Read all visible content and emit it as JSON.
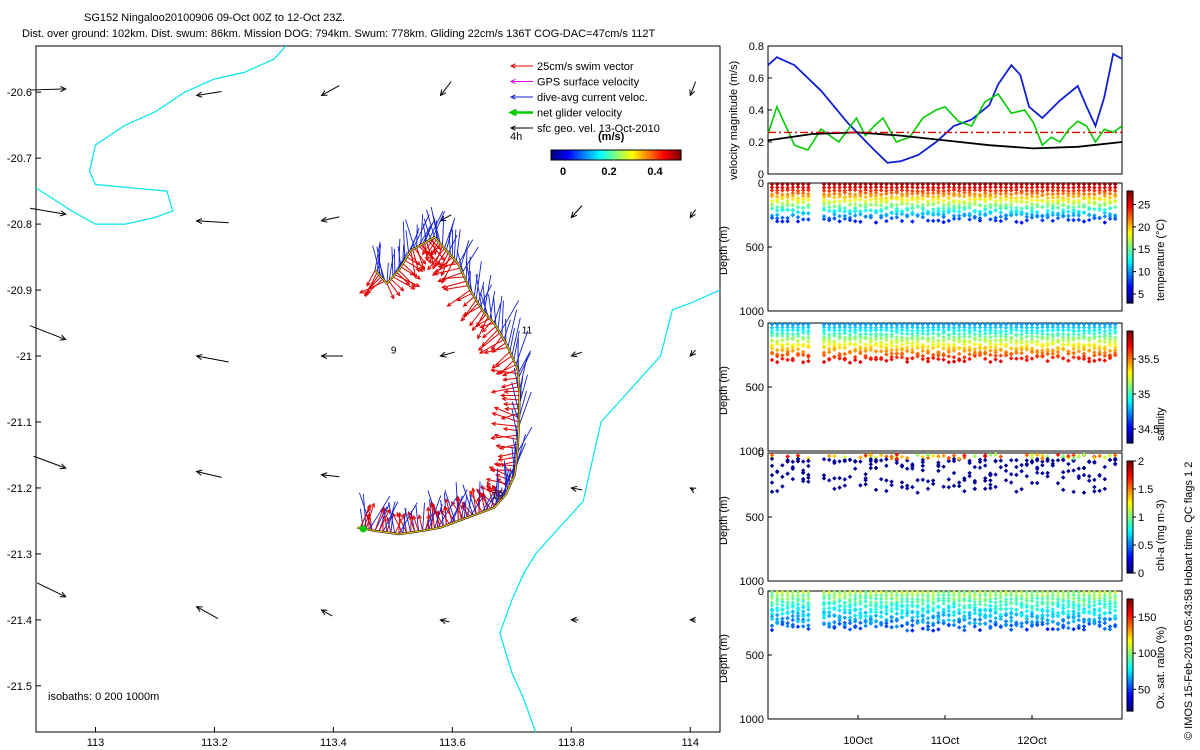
{
  "title_line1": "SG152 Ningaloo20100906 09-Oct 00Z to 12-Oct 23Z.",
  "title_line2": "Dist. over ground: 102km. Dist. swum: 86km. Mission DOG: 794km. Swum: 778km. Gliding 22cm/s 136T COG-DAC=47cm/s 112T",
  "footer": "© IMOS 15-Feb-2019 05:43:58 Hobart time. QC flags 1 2",
  "chart_data": [
    {
      "type": "scatter",
      "name": "track-map",
      "xlim": [
        112.9,
        114.05
      ],
      "ylim": [
        -21.57,
        -20.53
      ],
      "xticks": [
        "113",
        "113.2",
        "113.4",
        "113.6",
        "113.8",
        "114"
      ],
      "yticks": [
        "-20.6",
        "-20.7",
        "-20.8",
        "-20.9",
        "-21",
        "-21.1",
        "-21.2",
        "-21.3",
        "-21.4",
        "-21.5"
      ],
      "legend": {
        "items": [
          {
            "label": "25cm/s swim vector",
            "color": "#e00000"
          },
          {
            "label": "GPS surface velocity",
            "color": "#e000e0"
          },
          {
            "label": "dive-avg current veloc.",
            "color": "#1020d0"
          },
          {
            "label": "net glider velocity",
            "color": "#00cc00"
          },
          {
            "label": "sfc geo. vel. 13-Oct-2010",
            "color": "#000000"
          }
        ],
        "sub": "4h",
        "scale_label": "(m/s)",
        "scale_ticks": [
          "0",
          "0.2",
          "0.4"
        ],
        "placement": "top-right"
      },
      "isobaths_label": "isobaths: 0   200  1000m",
      "day_labels": [
        "9",
        "11",
        "12"
      ],
      "track": [
        [
          113.47,
          -20.87
        ],
        [
          113.49,
          -20.89
        ],
        [
          113.51,
          -20.87
        ],
        [
          113.53,
          -20.84
        ],
        [
          113.55,
          -20.83
        ],
        [
          113.57,
          -20.82
        ],
        [
          113.59,
          -20.84
        ],
        [
          113.61,
          -20.86
        ],
        [
          113.63,
          -20.9
        ],
        [
          113.65,
          -20.93
        ],
        [
          113.67,
          -20.95
        ],
        [
          113.69,
          -20.98
        ],
        [
          113.71,
          -21.02
        ],
        [
          113.713,
          -21.06
        ],
        [
          113.712,
          -21.1
        ],
        [
          113.71,
          -21.14
        ],
        [
          113.705,
          -21.18
        ],
        [
          113.69,
          -21.21
        ],
        [
          113.67,
          -21.23
        ],
        [
          113.64,
          -21.24
        ],
        [
          113.61,
          -21.25
        ],
        [
          113.58,
          -21.26
        ],
        [
          113.55,
          -21.265
        ],
        [
          113.51,
          -21.27
        ],
        [
          113.47,
          -21.265
        ],
        [
          113.44,
          -21.26
        ]
      ],
      "geo_vectors": [
        [
          112.95,
          -20.595,
          0.1,
          0.003
        ],
        [
          113.17,
          -20.605,
          -0.07,
          -0.01
        ],
        [
          113.38,
          -20.605,
          -0.05,
          -0.025
        ],
        [
          113.58,
          -20.605,
          -0.03,
          -0.035
        ],
        [
          114.0,
          -20.605,
          -0.015,
          -0.035
        ],
        [
          112.95,
          -20.785,
          0.1,
          -0.015
        ],
        [
          113.17,
          -20.795,
          -0.09,
          0.005
        ],
        [
          113.38,
          -20.795,
          -0.05,
          -0.01
        ],
        [
          113.58,
          -20.795,
          -0.03,
          -0.015
        ],
        [
          113.8,
          -20.79,
          -0.03,
          -0.03
        ],
        [
          114.0,
          -20.79,
          -0.015,
          -0.02
        ],
        [
          112.95,
          -20.975,
          0.1,
          -0.035
        ],
        [
          113.17,
          -21.0,
          -0.09,
          0.015
        ],
        [
          113.38,
          -21.0,
          -0.06,
          0.0
        ],
        [
          113.58,
          -21.0,
          -0.04,
          -0.01
        ],
        [
          113.8,
          -21.0,
          -0.03,
          -0.01
        ],
        [
          114.0,
          -21.0,
          -0.015,
          -0.015
        ],
        [
          112.95,
          -21.17,
          0.09,
          -0.03
        ],
        [
          113.17,
          -21.175,
          -0.07,
          0.015
        ],
        [
          113.38,
          -21.18,
          -0.05,
          0.005
        ],
        [
          113.8,
          -21.2,
          -0.03,
          0.005
        ],
        [
          114.0,
          -21.2,
          -0.01,
          0.005
        ],
        [
          112.95,
          -21.365,
          0.08,
          -0.035
        ],
        [
          113.17,
          -21.38,
          -0.06,
          0.03
        ],
        [
          113.38,
          -21.385,
          -0.03,
          0.015
        ],
        [
          113.58,
          -21.4,
          -0.025,
          0.005
        ],
        [
          113.8,
          -21.4,
          -0.02,
          0.0
        ],
        [
          114.0,
          -21.4,
          -0.015,
          0.0
        ]
      ]
    },
    {
      "type": "line",
      "name": "velocity-magnitude",
      "ylabel": "velocity magnitude (m/s)",
      "xlim": [
        0,
        4
      ],
      "ylim": [
        0,
        0.8
      ],
      "yticks": [
        "0",
        "0.2",
        "0.4",
        "0.6",
        "0.8"
      ],
      "series": [
        {
          "name": "dive-avg current",
          "color": "#1020d0",
          "x": [
            0,
            0.1,
            0.3,
            0.6,
            0.9,
            1.2,
            1.35,
            1.5,
            1.7,
            1.9,
            2.1,
            2.3,
            2.5,
            2.6,
            2.75,
            2.85,
            2.95,
            3.1,
            3.3,
            3.5,
            3.6,
            3.7,
            3.8,
            3.9,
            4.0
          ],
          "y": [
            0.68,
            0.73,
            0.68,
            0.52,
            0.32,
            0.15,
            0.07,
            0.08,
            0.12,
            0.2,
            0.3,
            0.34,
            0.43,
            0.56,
            0.68,
            0.62,
            0.42,
            0.35,
            0.46,
            0.55,
            0.42,
            0.3,
            0.48,
            0.75,
            0.72
          ]
        },
        {
          "name": "net glider velocity",
          "color": "#00cc00",
          "x": [
            0,
            0.1,
            0.2,
            0.3,
            0.45,
            0.6,
            0.8,
            1.0,
            1.1,
            1.2,
            1.3,
            1.45,
            1.6,
            1.75,
            1.9,
            2.0,
            2.15,
            2.3,
            2.45,
            2.6,
            2.75,
            2.9,
            3.0,
            3.1,
            3.2,
            3.3,
            3.4,
            3.5,
            3.6,
            3.7,
            3.8,
            3.9,
            4.0
          ],
          "y": [
            0.25,
            0.42,
            0.3,
            0.18,
            0.15,
            0.28,
            0.2,
            0.35,
            0.24,
            0.3,
            0.35,
            0.2,
            0.23,
            0.35,
            0.4,
            0.42,
            0.33,
            0.3,
            0.45,
            0.5,
            0.38,
            0.4,
            0.32,
            0.18,
            0.23,
            0.2,
            0.28,
            0.33,
            0.3,
            0.2,
            0.28,
            0.26,
            0.3
          ]
        },
        {
          "name": "sfc geo. vel.",
          "color": "#000000",
          "x": [
            0,
            0.5,
            1.0,
            1.5,
            2.0,
            2.5,
            3.0,
            3.5,
            4.0
          ],
          "y": [
            0.21,
            0.25,
            0.26,
            0.24,
            0.21,
            0.18,
            0.16,
            0.17,
            0.2
          ]
        },
        {
          "name": "swim speed",
          "color": "#e00000",
          "dashed": true,
          "x": [
            0,
            4.0
          ],
          "y": [
            0.26,
            0.26
          ]
        }
      ]
    },
    {
      "type": "scatter",
      "name": "temperature-section",
      "ylabel": "Depth (m)",
      "ylim": [
        1000,
        0
      ],
      "yticks": [
        "0",
        "500",
        "1000"
      ],
      "colorbar": {
        "label": "temperature (°C)",
        "range": [
          3,
          28
        ],
        "ticks": [
          "5",
          "10",
          "15",
          "20",
          "25"
        ]
      },
      "depth_max_m": 300
    },
    {
      "type": "scatter",
      "name": "salinity-section",
      "ylabel": "Depth (m)",
      "ylim": [
        1000,
        0
      ],
      "yticks": [
        "0",
        "500",
        "1000"
      ],
      "colorbar": {
        "label": "salinity",
        "range": [
          34.3,
          35.9
        ],
        "ticks": [
          "34.5",
          "35",
          "35.5"
        ]
      },
      "depth_max_m": 300
    },
    {
      "type": "scatter",
      "name": "chla-section",
      "ylabel": "Depth (m)",
      "ylim": [
        1000,
        0
      ],
      "yticks": [
        "0",
        "500",
        "1000"
      ],
      "colorbar": {
        "label": "chl-a (mg m-3)",
        "range": [
          0,
          2
        ],
        "ticks": [
          "0",
          "0.5",
          "1",
          "1.5",
          "2"
        ]
      },
      "depth_max_m": 300
    },
    {
      "type": "scatter",
      "name": "oxygen-section",
      "ylabel": "Depth (m)",
      "ylim": [
        1000,
        0
      ],
      "yticks": [
        "0",
        "500",
        "1000"
      ],
      "colorbar": {
        "label": "Ox. sat. ratio (%)",
        "range": [
          20,
          175
        ],
        "ticks": [
          "50",
          "100",
          "150"
        ]
      },
      "depth_max_m": 300,
      "xticks": [
        "10Oct",
        "11Oct",
        "12Oct"
      ]
    }
  ]
}
